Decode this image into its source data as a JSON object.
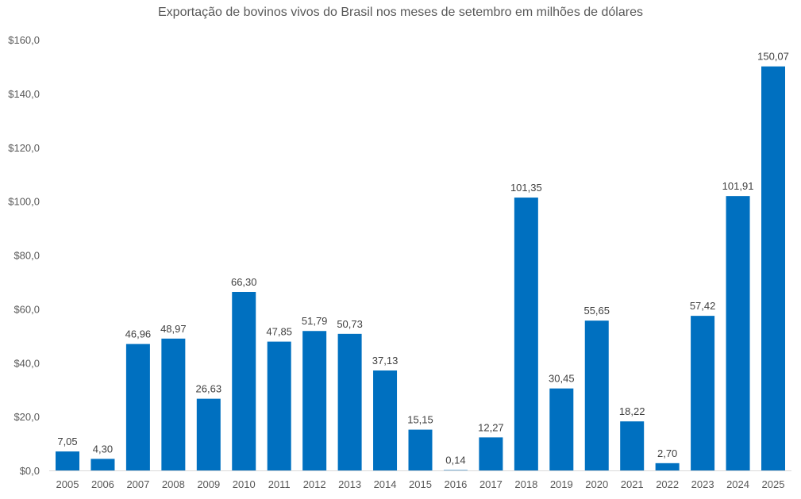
{
  "chart_data": {
    "type": "bar",
    "title": "Exportação de bovinos vivos do Brasil nos meses de setembro em milhões de dólares",
    "xlabel": "",
    "ylabel": "",
    "categories": [
      "2005",
      "2006",
      "2007",
      "2008",
      "2009",
      "2010",
      "2011",
      "2012",
      "2013",
      "2014",
      "2015",
      "2016",
      "2017",
      "2018",
      "2019",
      "2020",
      "2021",
      "2022",
      "2023",
      "2024",
      "2025"
    ],
    "values": [
      7.05,
      4.3,
      46.96,
      48.97,
      26.63,
      66.3,
      47.85,
      51.79,
      50.73,
      37.13,
      15.15,
      0.14,
      12.27,
      101.35,
      30.45,
      55.65,
      18.22,
      2.7,
      57.42,
      101.91,
      150.07
    ],
    "data_labels": [
      "7,05",
      "4,30",
      "46,96",
      "48,97",
      "26,63",
      "66,30",
      "47,85",
      "51,79",
      "50,73",
      "37,13",
      "15,15",
      "0,14",
      "12,27",
      "101,35",
      "30,45",
      "55,65",
      "18,22",
      "2,70",
      "57,42",
      "101,91",
      "150,07"
    ],
    "ylim": [
      0,
      160
    ],
    "y_ticks": [
      0,
      20,
      40,
      60,
      80,
      100,
      120,
      140,
      160
    ],
    "y_tick_labels": [
      "$0,0",
      "$20,0",
      "$40,0",
      "$60,0",
      "$80,0",
      "$100,0",
      "$120,0",
      "$140,0",
      "$160,0"
    ],
    "grid": false,
    "legend": "none",
    "bar_color": "#0070C0"
  }
}
